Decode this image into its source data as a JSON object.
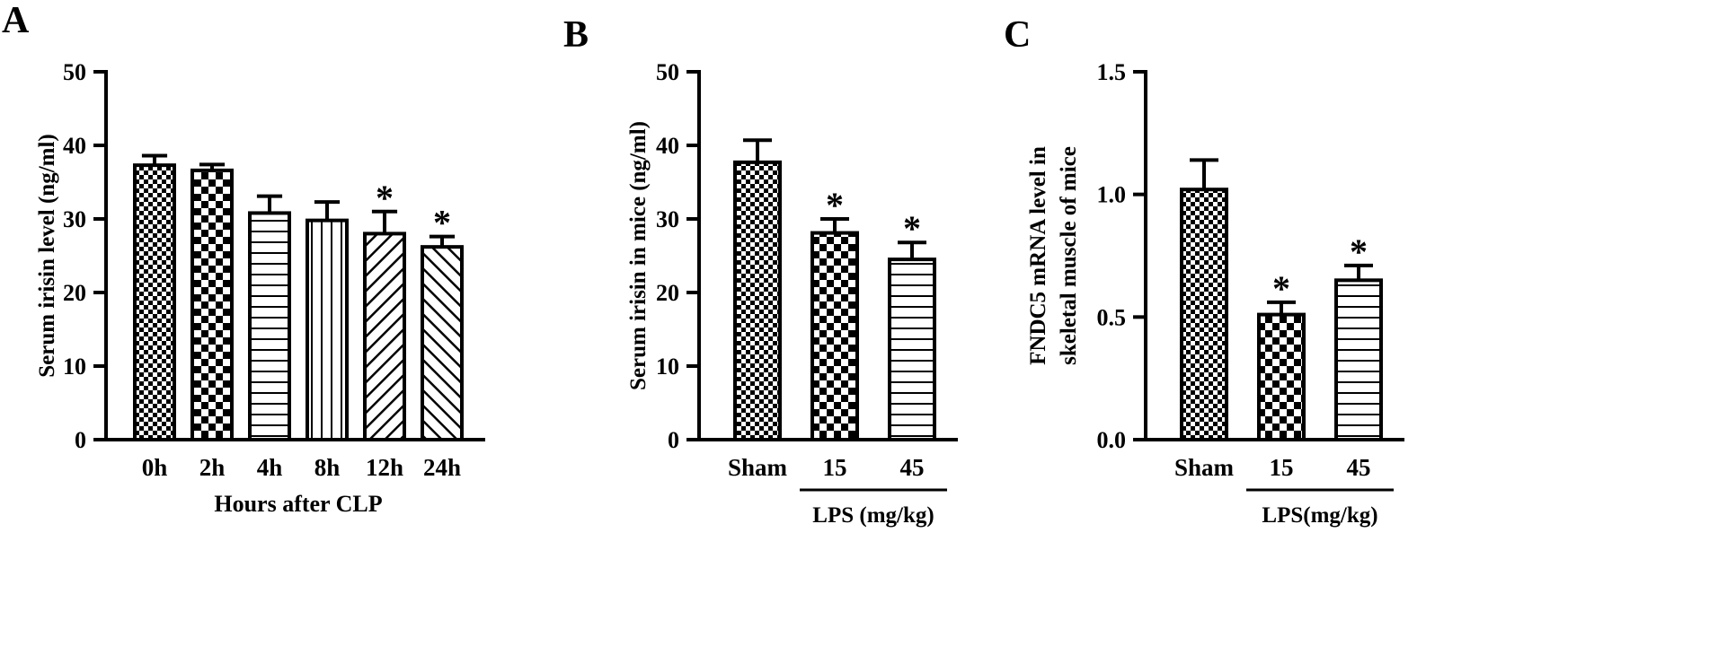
{
  "panels": [
    {
      "label": "A",
      "chart_data": {
        "type": "bar",
        "categories": [
          "0h",
          "2h",
          "4h",
          "8h",
          "12h",
          "24h"
        ],
        "values": [
          37.3,
          36.6,
          30.8,
          29.8,
          28.0,
          26.2
        ],
        "errors": [
          1.3,
          0.8,
          2.3,
          2.5,
          3.0,
          1.4
        ],
        "significance": [
          "",
          "",
          "",
          "",
          "*",
          "*"
        ],
        "patterns": [
          "fine-check",
          "check",
          "hline",
          "vline",
          "diag",
          "diag-back"
        ],
        "ylabel": "Serum irisin level (ng/ml)",
        "xlabel": "Hours after CLP",
        "ylim": [
          0,
          50
        ],
        "yticks": [
          0,
          10,
          20,
          30,
          40,
          50
        ],
        "ytick_labels": [
          "0",
          "10",
          "20",
          "30",
          "40",
          "50"
        ]
      }
    },
    {
      "label": "B",
      "chart_data": {
        "type": "bar",
        "categories": [
          "Sham",
          "15",
          "45"
        ],
        "values": [
          37.7,
          28.1,
          24.5
        ],
        "errors": [
          3.0,
          1.9,
          2.3
        ],
        "significance": [
          "",
          "*",
          "*"
        ],
        "patterns": [
          "fine-check",
          "check",
          "hline"
        ],
        "ylabel": "Serum irisin in mice  (ng/ml)",
        "group_label": "LPS (mg/kg)",
        "ylim": [
          0,
          50
        ],
        "yticks": [
          0,
          10,
          20,
          30,
          40,
          50
        ],
        "ytick_labels": [
          "0",
          "10",
          "20",
          "30",
          "40",
          "50"
        ]
      }
    },
    {
      "label": "C",
      "chart_data": {
        "type": "bar",
        "categories": [
          "Sham",
          "15",
          "45"
        ],
        "values": [
          1.02,
          0.51,
          0.65
        ],
        "errors": [
          0.12,
          0.05,
          0.06
        ],
        "significance": [
          "",
          "*",
          "*"
        ],
        "patterns": [
          "fine-check",
          "check",
          "hline"
        ],
        "ylabel": [
          "FNDC5  mRNA level  in",
          "skeletal muscle of mice"
        ],
        "group_label": "LPS(mg/kg)",
        "ylim": [
          0,
          1.5
        ],
        "yticks": [
          0,
          0.5,
          1.0,
          1.5
        ],
        "ytick_labels": [
          "0.0",
          "0.5",
          "1.0",
          "1.5"
        ]
      }
    }
  ]
}
